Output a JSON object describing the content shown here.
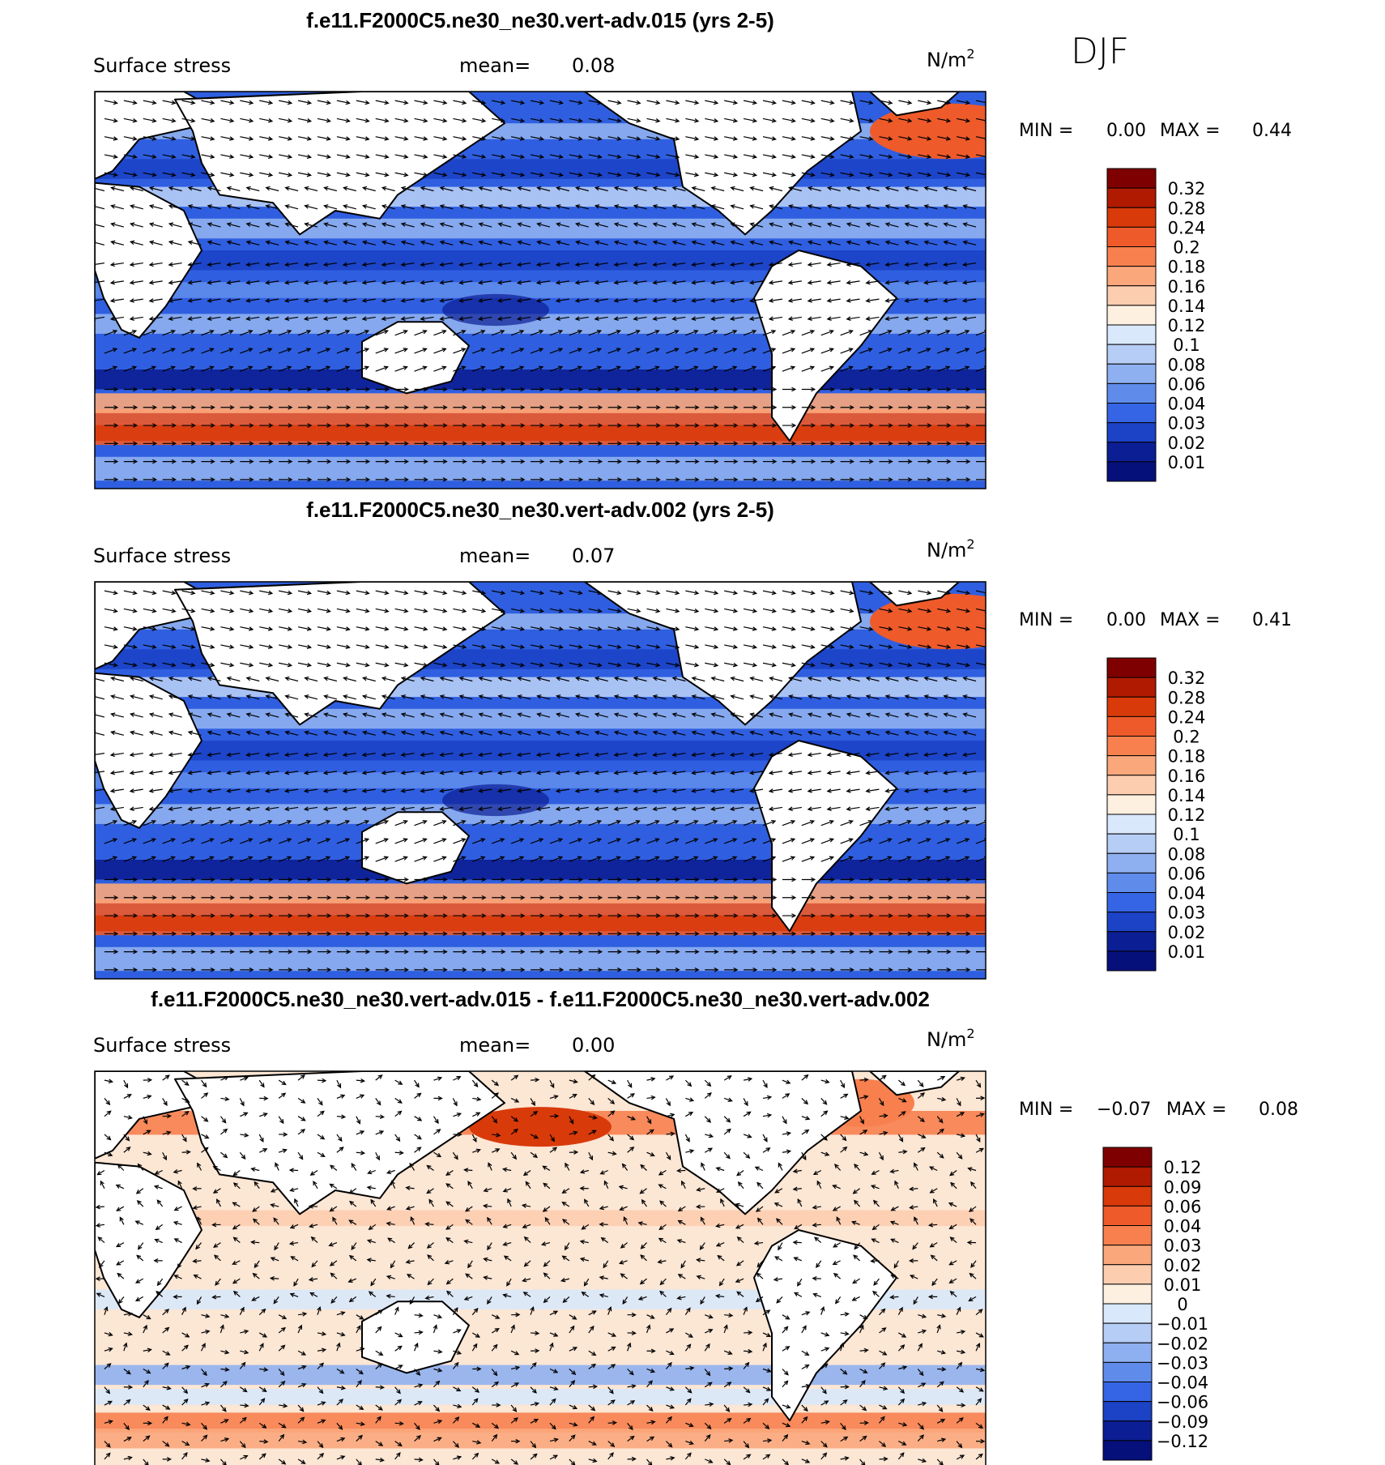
{
  "season": "DJF",
  "units": "N/m",
  "units_exponent": "2",
  "land_color": "#ffffff",
  "panels": [
    {
      "title": "f.e11.F2000C5.ne30_ne30.vert-adv.015 (yrs 2-5)",
      "variable": "Surface stress",
      "mean_label": "mean=",
      "mean_value": "0.08",
      "min_label": "MIN =",
      "min_value": "0.00",
      "max_label": "MAX =",
      "max_value": "0.44",
      "colorbar": {
        "labels": [
          "0.32",
          "0.28",
          "0.24",
          "0.2",
          "0.18",
          "0.16",
          "0.14",
          "0.12",
          "0.1",
          "0.08",
          "0.06",
          "0.04",
          "0.03",
          "0.02",
          "0.01"
        ],
        "colors": [
          "#7f0000",
          "#b01a00",
          "#d93a0a",
          "#ef5a2a",
          "#f7804e",
          "#fba77c",
          "#fdcdb0",
          "#fef0e0",
          "#d9e8fb",
          "#b6cdf6",
          "#8fb0f0",
          "#5f8ceb",
          "#3565e4",
          "#1c42c6",
          "#0c1e94",
          "#06107a"
        ]
      }
    },
    {
      "title": "f.e11.F2000C5.ne30_ne30.vert-adv.002 (yrs 2-5)",
      "variable": "Surface stress",
      "mean_label": "mean=",
      "mean_value": "0.07",
      "min_label": "MIN =",
      "min_value": "0.00",
      "max_label": "MAX =",
      "max_value": "0.41",
      "colorbar": {
        "labels": [
          "0.32",
          "0.28",
          "0.24",
          "0.2",
          "0.18",
          "0.16",
          "0.14",
          "0.12",
          "0.1",
          "0.08",
          "0.06",
          "0.04",
          "0.03",
          "0.02",
          "0.01"
        ],
        "colors": [
          "#7f0000",
          "#b01a00",
          "#d93a0a",
          "#ef5a2a",
          "#f7804e",
          "#fba77c",
          "#fdcdb0",
          "#fef0e0",
          "#d9e8fb",
          "#b6cdf6",
          "#8fb0f0",
          "#5f8ceb",
          "#3565e4",
          "#1c42c6",
          "#0c1e94",
          "#06107a"
        ]
      }
    },
    {
      "title": "f.e11.F2000C5.ne30_ne30.vert-adv.015 - f.e11.F2000C5.ne30_ne30.vert-adv.002",
      "variable": "Surface stress",
      "mean_label": "mean=",
      "mean_value": "0.00",
      "min_label": "MIN =",
      "min_value": "−0.07",
      "max_label": "MAX =",
      "max_value": "0.08",
      "colorbar": {
        "labels": [
          "0.12",
          "0.09",
          "0.06",
          "0.04",
          "0.03",
          "0.02",
          "0.01",
          "0",
          "−0.01",
          "−0.02",
          "−0.03",
          "−0.04",
          "−0.06",
          "−0.09",
          "−0.12"
        ],
        "colors": [
          "#7f0000",
          "#b01a00",
          "#d93a0a",
          "#ef5a2a",
          "#f7804e",
          "#fba77c",
          "#fdcdb0",
          "#fef0e0",
          "#d9e8fb",
          "#b6cdf6",
          "#8fb0f0",
          "#5f8ceb",
          "#3565e4",
          "#1c42c6",
          "#0c1e94",
          "#06107a"
        ]
      }
    }
  ]
}
